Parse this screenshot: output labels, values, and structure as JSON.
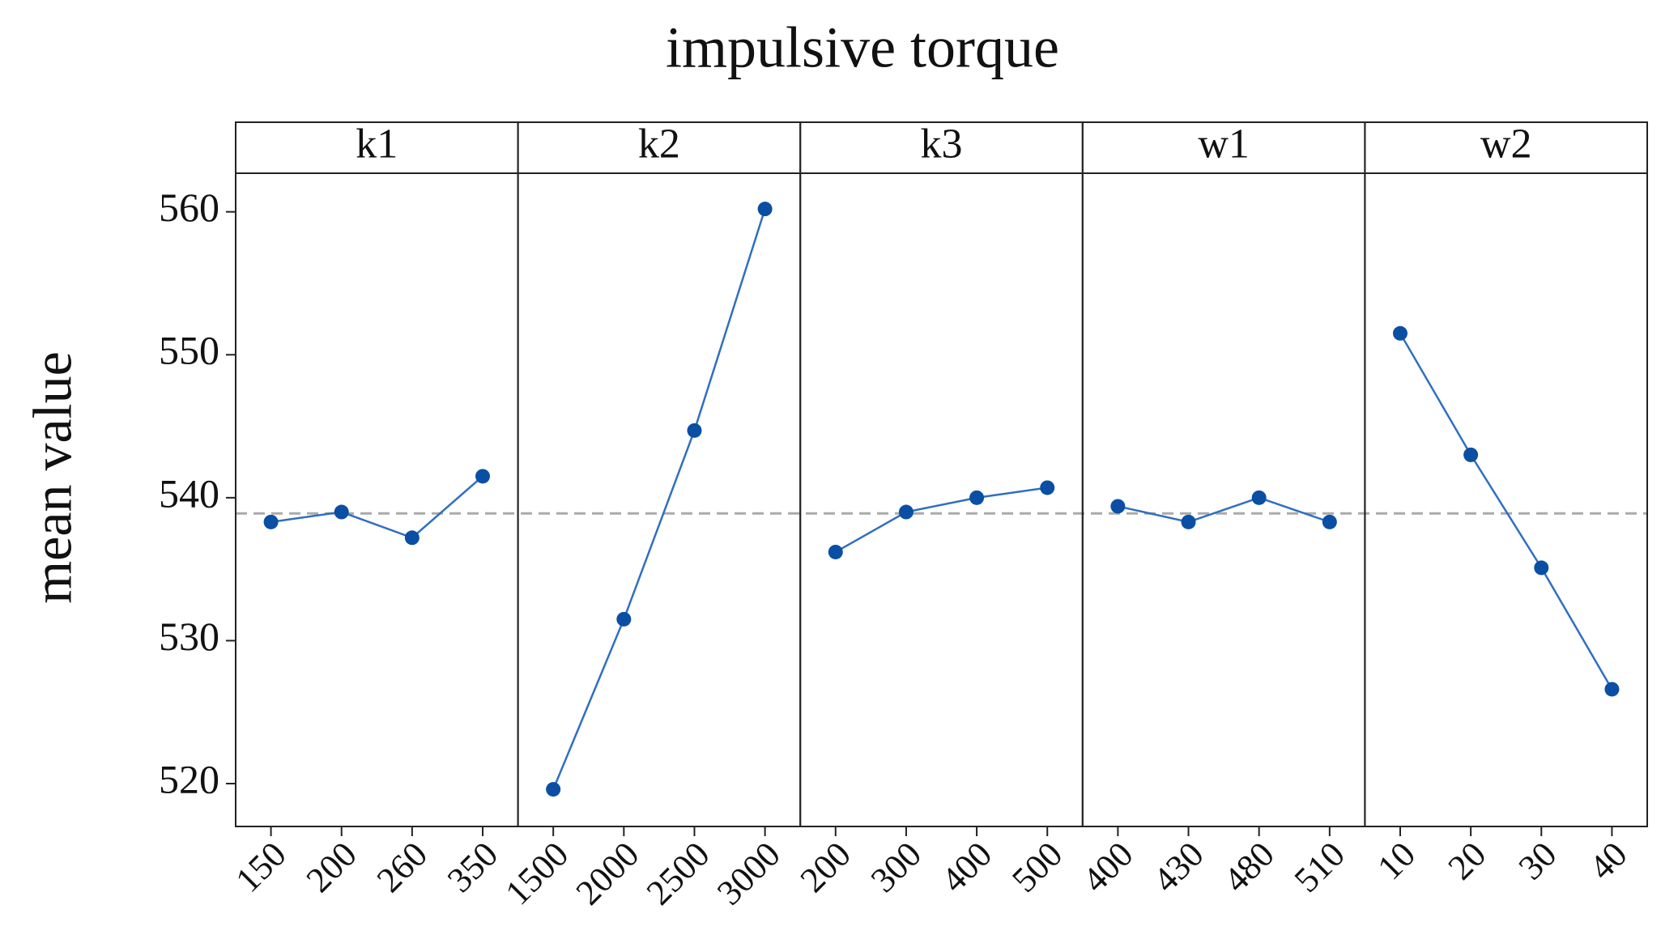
{
  "chart_data": {
    "type": "line",
    "title": "impulsive torque",
    "y_label": "mean value",
    "ylim": [
      517,
      562.7
    ],
    "yticks": [
      520,
      530,
      540,
      550,
      560
    ],
    "reference_line": 538.9,
    "line_color": "#2f6fc0",
    "marker_color": "#0a4fa3",
    "panels": [
      {
        "name": "k1",
        "categories": [
          "150",
          "200",
          "260",
          "350"
        ],
        "values": [
          538.3,
          539.0,
          537.2,
          541.5
        ]
      },
      {
        "name": "k2",
        "categories": [
          "1500",
          "2000",
          "2500",
          "3000"
        ],
        "values": [
          519.6,
          531.5,
          544.7,
          560.2
        ]
      },
      {
        "name": "k3",
        "categories": [
          "200",
          "300",
          "400",
          "500"
        ],
        "values": [
          536.2,
          539.0,
          540.0,
          540.7
        ]
      },
      {
        "name": "w1",
        "categories": [
          "400",
          "430",
          "480",
          "510"
        ],
        "values": [
          539.4,
          538.3,
          540.0,
          538.3
        ]
      },
      {
        "name": "w2",
        "categories": [
          "10",
          "20",
          "30",
          "40"
        ],
        "values": [
          551.5,
          543.0,
          535.1,
          526.6
        ]
      }
    ]
  }
}
